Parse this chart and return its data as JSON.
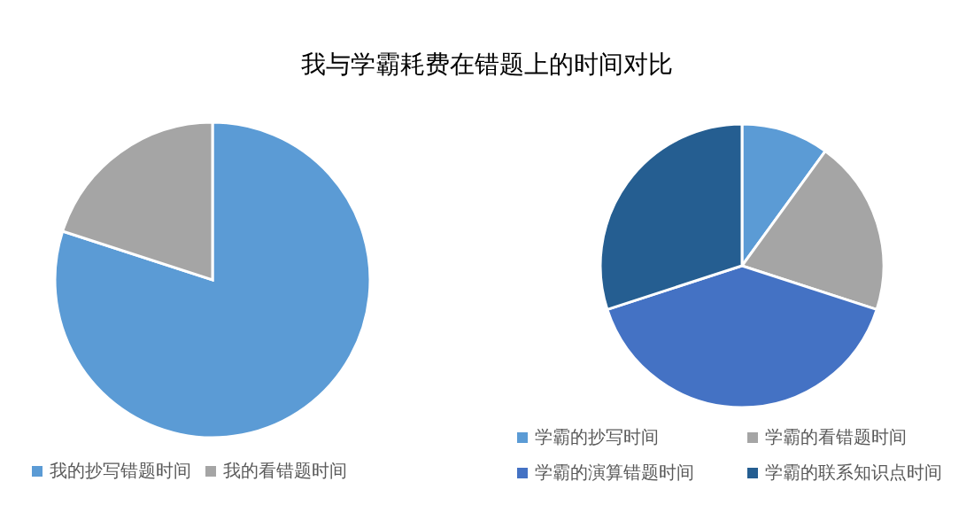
{
  "chart_data": [
    {
      "type": "pie",
      "title": "我与学霸耗费在错题上的时间对比",
      "categories": [
        "我的抄写错题时间",
        "我的看错题时间"
      ],
      "values": [
        80,
        20
      ],
      "colors": [
        "#5b9bd5",
        "#a5a5a5"
      ],
      "legend": "bottom"
    },
    {
      "type": "pie",
      "categories": [
        "学霸的抄写时间",
        "学霸的看错题时间",
        "学霸的演算错题时间",
        "学霸的联系知识点时间"
      ],
      "values": [
        10,
        20,
        40,
        30
      ],
      "colors": [
        "#5b9bd5",
        "#a5a5a5",
        "#4472c4",
        "#255e91"
      ],
      "legend": "bottom"
    }
  ]
}
